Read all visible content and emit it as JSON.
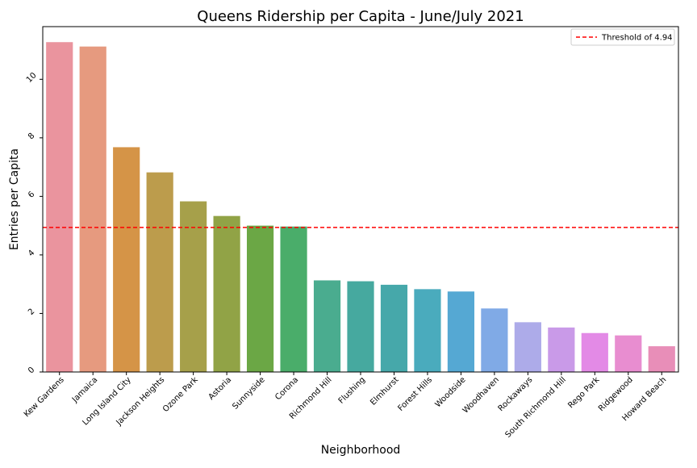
{
  "chart_data": {
    "type": "bar",
    "title": "Queens Ridership per Capita - June/July 2021",
    "xlabel": "Neighborhood",
    "ylabel": "Entries per Capita",
    "ylim": [
      0,
      11.8
    ],
    "yticks": [
      0,
      2,
      4,
      6,
      8,
      10
    ],
    "grid": false,
    "legend_position": "top-right",
    "categories": [
      "Kew Gardens",
      "Jamaica",
      "Long Island City",
      "Jackson Heights",
      "Ozone Park",
      "Astoria",
      "Sunnyside",
      "Corona",
      "Richmond Hill",
      "Flushing",
      "Elmhurst",
      "Forest Hills",
      "Woodside",
      "Woodhaven",
      "Rockaways",
      "South Richmond Hill",
      "Rego Park",
      "Ridgewood",
      "Howard Beach"
    ],
    "values": [
      11.27,
      11.12,
      7.68,
      6.82,
      5.83,
      5.33,
      5.0,
      4.97,
      3.13,
      3.1,
      2.98,
      2.83,
      2.75,
      2.17,
      1.7,
      1.52,
      1.33,
      1.25,
      0.88
    ],
    "colors": [
      "#ea949e",
      "#e69a7f",
      "#d59447",
      "#bc9c4c",
      "#a6a04a",
      "#91a346",
      "#6ba745",
      "#4aad6a",
      "#4aac8f",
      "#46a99f",
      "#46a8aa",
      "#4aabbd",
      "#55a8d3",
      "#80aae6",
      "#adabe9",
      "#c99ae8",
      "#e38ae6",
      "#e88dd0",
      "#e88eb8"
    ],
    "threshold": {
      "value": 4.94,
      "label": "Threshold of 4.94",
      "color": "#ff0000"
    }
  }
}
